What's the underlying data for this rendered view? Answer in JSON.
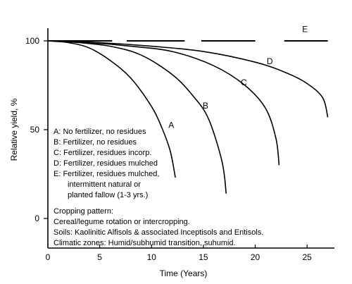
{
  "chart_data": {
    "type": "line",
    "xlabel": "Time (Years)",
    "ylabel": "Relative yield, %",
    "xlim": [
      0,
      27.5
    ],
    "ylim": [
      0,
      100
    ],
    "x_ticks": [
      0,
      5,
      10,
      15,
      20,
      25
    ],
    "x_tick_labels": [
      "0",
      "5",
      "10",
      "15",
      "20",
      "25"
    ],
    "y_ticks": [
      0,
      50,
      100
    ],
    "y_tick_labels": [
      "0",
      "50",
      "100"
    ],
    "grid": false,
    "series": [
      {
        "name": "A",
        "x": [
          0,
          2,
          4,
          6,
          8,
          10,
          11,
          11.8,
          12.3
        ],
        "y": [
          100,
          99,
          96,
          89,
          79,
          63,
          51,
          38,
          23
        ],
        "style": "solid"
      },
      {
        "name": "B",
        "x": [
          0,
          3,
          6,
          9,
          12,
          14,
          15.5,
          16.8,
          17.2
        ],
        "y": [
          100,
          99,
          97,
          92,
          81,
          69,
          56,
          32,
          14
        ],
        "style": "solid"
      },
      {
        "name": "C",
        "x": [
          0,
          4,
          8,
          12,
          16,
          19,
          21,
          22,
          22.3
        ],
        "y": [
          100,
          99,
          97,
          94,
          86,
          75,
          62,
          45,
          30
        ],
        "style": "solid"
      },
      {
        "name": "D",
        "x": [
          0,
          5,
          10,
          15,
          20,
          23,
          25,
          26.5,
          27
        ],
        "y": [
          100,
          99,
          97,
          94,
          88,
          82,
          76,
          68,
          57
        ],
        "style": "solid"
      },
      {
        "name": "E",
        "x": [
          0,
          27
        ],
        "y": [
          100,
          100
        ],
        "style": "dashed"
      }
    ],
    "curve_labels": [
      {
        "series": "A",
        "text": "A",
        "x": 11.9,
        "y": 51
      },
      {
        "series": "B",
        "text": "B",
        "x": 15.2,
        "y": 62
      },
      {
        "series": "C",
        "text": "C",
        "x": 18.9,
        "y": 75
      },
      {
        "series": "D",
        "text": "D",
        "x": 21.4,
        "y": 87
      },
      {
        "series": "E",
        "text": "E",
        "x": 24.8,
        "y": 105
      }
    ],
    "legend_position": "lower-left",
    "legend": [
      "A: No fertilizer, no residues",
      "B: Fertilizer, no residues",
      "C: Fertilizer, residues incorp.",
      "D: Fertilizer, residues mulched",
      "E: Fertilizer, residues mulched,",
      "intermittent natural or",
      "planted fallow (1-3 yrs.)"
    ],
    "notes": [
      "Cropping pattern:",
      "Cereal/legume rotation or intercropping.",
      "Soils: Kaolinitic Alfisols & associated Inceptisols and Entisols.",
      "Climatic zones: Humid/subhumid transition, suhumid."
    ]
  }
}
